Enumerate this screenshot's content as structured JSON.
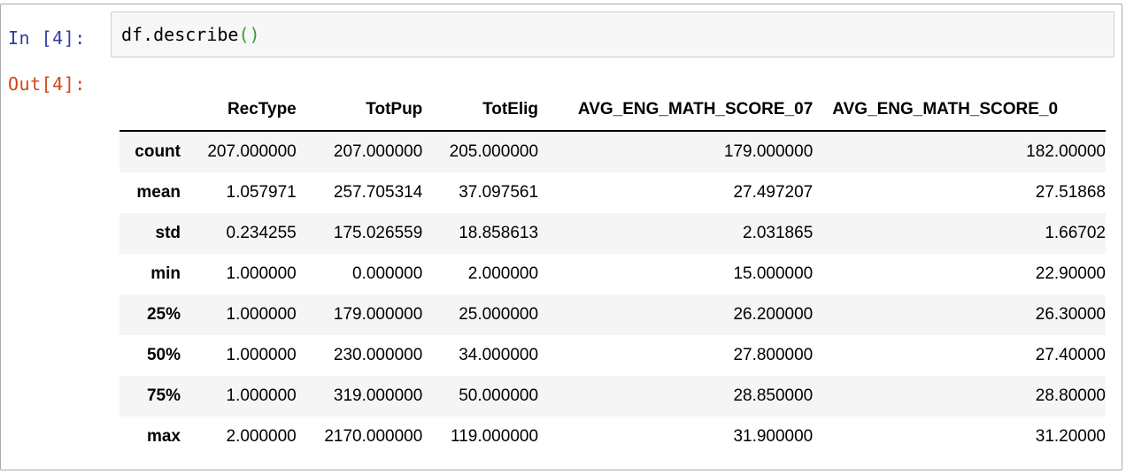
{
  "cell": {
    "in_prompt": "In [4]:",
    "out_prompt": "Out[4]:",
    "code_main": "df.describe",
    "code_parens": "()"
  },
  "table": {
    "columns": [
      "RecType",
      "TotPup",
      "TotElig",
      "AVG_ENG_MATH_SCORE_07",
      "AVG_ENG_MATH_SCORE_0"
    ],
    "rows": [
      {
        "index": "count",
        "values": [
          "207.000000",
          "207.000000",
          "205.000000",
          "179.000000",
          "182.00000"
        ]
      },
      {
        "index": "mean",
        "values": [
          "1.057971",
          "257.705314",
          "37.097561",
          "27.497207",
          "27.51868"
        ]
      },
      {
        "index": "std",
        "values": [
          "0.234255",
          "175.026559",
          "18.858613",
          "2.031865",
          "1.66702"
        ]
      },
      {
        "index": "min",
        "values": [
          "1.000000",
          "0.000000",
          "2.000000",
          "15.000000",
          "22.90000"
        ]
      },
      {
        "index": "25%",
        "values": [
          "1.000000",
          "179.000000",
          "25.000000",
          "26.200000",
          "26.30000"
        ]
      },
      {
        "index": "50%",
        "values": [
          "1.000000",
          "230.000000",
          "34.000000",
          "27.800000",
          "27.40000"
        ]
      },
      {
        "index": "75%",
        "values": [
          "1.000000",
          "319.000000",
          "50.000000",
          "28.850000",
          "28.80000"
        ]
      },
      {
        "index": "max",
        "values": [
          "2.000000",
          "2170.000000",
          "119.000000",
          "31.900000",
          "31.20000"
        ]
      }
    ]
  },
  "colors": {
    "in_prompt": "#303f9f",
    "out_prompt": "#d84315",
    "paren": "#3a9b3a",
    "stripe": "#f5f5f5"
  }
}
